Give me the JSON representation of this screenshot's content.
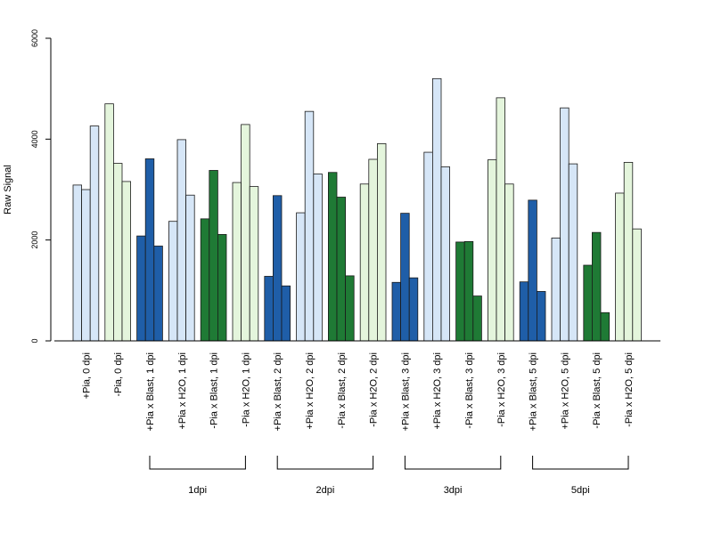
{
  "chart_data": {
    "type": "bar",
    "ylabel": "Raw Signal",
    "ylim": [
      0,
      6000
    ],
    "yticks": [
      0,
      2000,
      4000,
      6000
    ],
    "grid": false,
    "legend": "none",
    "categories": [
      "+Pia, 0 dpi",
      "-Pia, 0 dpi",
      "+Pia x Blast, 1 dpi",
      "+Pia x H2O, 1 dpi",
      "-Pia x Blast, 1 dpi",
      "-Pia x H2O, 1 dpi",
      "+Pia x Blast, 2 dpi",
      "+Pia x H2O, 2 dpi",
      "-Pia x Blast, 2 dpi",
      "-Pia x H2O, 2 dpi",
      "+Pia x Blast, 3 dpi",
      "+Pia x H2O, 3 dpi",
      "-Pia x Blast, 3 dpi",
      "-Pia x H2O, 3 dpi",
      "+Pia x Blast, 5 dpi",
      "+Pia x H2O, 5 dpi",
      "-Pia x Blast, 5 dpi",
      "-Pia x H2O, 5 dpi"
    ],
    "values": [
      [
        3090,
        3000,
        4260
      ],
      [
        4700,
        3520,
        3160
      ],
      [
        2080,
        3610,
        1880
      ],
      [
        2370,
        3990,
        2890
      ],
      [
        2420,
        3380,
        2110
      ],
      [
        3140,
        4290,
        3060
      ],
      [
        1280,
        2880,
        1090
      ],
      [
        2540,
        4550,
        3310
      ],
      [
        3340,
        2850,
        1290
      ],
      [
        3110,
        3600,
        3910
      ],
      [
        1160,
        2530,
        1250
      ],
      [
        3740,
        5200,
        3450
      ],
      [
        1960,
        1970,
        890
      ],
      [
        3590,
        4820,
        3110
      ],
      [
        1170,
        2790,
        980
      ],
      [
        2040,
        4620,
        3510
      ],
      [
        1500,
        2150,
        560
      ],
      [
        2930,
        3540,
        2220
      ]
    ],
    "bar_colors": [
      "#d6e6f7",
      "#e4f5dc",
      "#1f5ea8",
      "#d6e6f7",
      "#1f7a35",
      "#e4f5dc",
      "#1f5ea8",
      "#d6e6f7",
      "#1f7a35",
      "#e4f5dc",
      "#1f5ea8",
      "#d6e6f7",
      "#1f7a35",
      "#e4f5dc",
      "#1f5ea8",
      "#d6e6f7",
      "#1f7a35",
      "#e4f5dc"
    ],
    "groups": [
      {
        "label": "1dpi",
        "from": 2,
        "to": 5
      },
      {
        "label": "2dpi",
        "from": 6,
        "to": 9
      },
      {
        "label": "3dpi",
        "from": 10,
        "to": 13
      },
      {
        "label": "5dpi",
        "from": 14,
        "to": 17
      }
    ]
  }
}
